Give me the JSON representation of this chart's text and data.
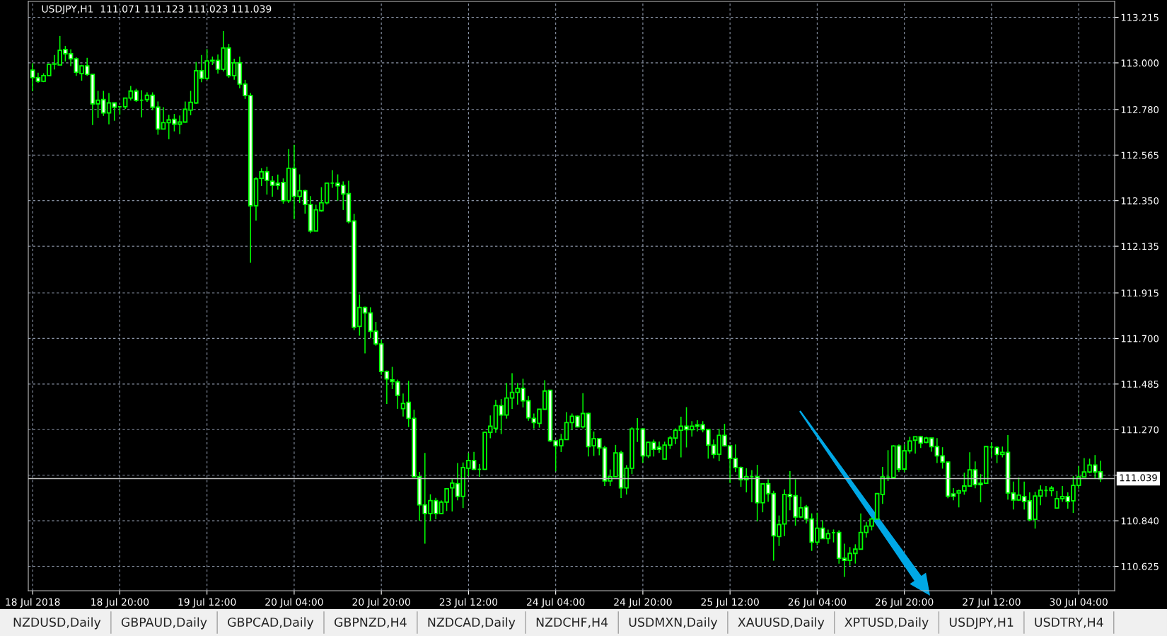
{
  "chart_data": {
    "type": "candlestick",
    "title": "USDJPY,H1  111.071 111.123 111.023 111.039",
    "color": "#00ff00",
    "categories": [
      "18 Jul 2018",
      null,
      null,
      null,
      null,
      null,
      null,
      null,
      null,
      null,
      null,
      null,
      null,
      null,
      null,
      null,
      "18 Jul 20:00",
      null,
      null,
      null,
      null,
      null,
      null,
      null,
      null,
      null,
      null,
      null,
      null,
      null,
      null,
      null,
      "19 Jul 12:00",
      null,
      null,
      null,
      null,
      null,
      null,
      null,
      null,
      null,
      null,
      null,
      null,
      null,
      null,
      null,
      "20 Jul 04:00",
      null,
      null,
      null,
      null,
      null,
      null,
      null,
      null,
      null,
      null,
      null,
      null,
      null,
      null,
      null,
      "20 Jul 20:00",
      null,
      null,
      null,
      null,
      null,
      null,
      null,
      null,
      null,
      null,
      null,
      null,
      null,
      null,
      null,
      "23 Jul 12:00",
      null,
      null,
      null,
      null,
      null,
      null,
      null,
      null,
      null,
      null,
      null,
      null,
      null,
      null,
      null,
      "24 Jul 04:00",
      null,
      null,
      null,
      null,
      null,
      null,
      null,
      null,
      null,
      null,
      null,
      null,
      null,
      null,
      null,
      "24 Jul 20:00",
      null,
      null,
      null,
      null,
      null,
      null,
      null,
      null,
      null,
      null,
      null,
      null,
      null,
      null,
      null,
      "25 Jul 12:00",
      null,
      null,
      null,
      null,
      null,
      null,
      null,
      null,
      null,
      null,
      null,
      null,
      null,
      null,
      null,
      "26 Jul 04:00",
      null,
      null,
      null,
      null,
      null,
      null,
      null,
      null,
      null,
      null,
      null,
      null,
      null,
      null,
      null,
      "26 Jul 20:00",
      null,
      null,
      null,
      null,
      null,
      null,
      null,
      null,
      null,
      null,
      null,
      null,
      null,
      null,
      null,
      "27 Jul 12:00",
      null,
      null,
      null,
      null,
      null,
      null,
      null,
      null,
      null,
      null,
      null,
      null,
      null,
      null,
      null,
      "30 Jul 04:00",
      null,
      null,
      null,
      null
    ],
    "ohlc": [
      [
        112.966,
        112.999,
        112.866,
        112.931
      ],
      [
        112.93,
        112.954,
        112.906,
        112.913
      ],
      [
        112.913,
        112.951,
        112.909,
        112.94
      ],
      [
        112.94,
        112.993,
        112.94,
        112.993
      ],
      [
        112.994,
        113.037,
        112.969,
        112.995
      ],
      [
        112.99,
        113.127,
        112.99,
        113.059
      ],
      [
        113.063,
        113.08,
        113.007,
        113.043
      ],
      [
        113.043,
        113.064,
        112.985,
        113.019
      ],
      [
        113.019,
        113.026,
        112.939,
        112.956
      ],
      [
        112.949,
        112.991,
        112.916,
        112.986
      ],
      [
        112.986,
        113.024,
        112.939,
        112.946
      ],
      [
        112.946,
        112.946,
        112.707,
        112.807
      ],
      [
        112.807,
        112.868,
        112.74,
        112.824
      ],
      [
        112.827,
        112.868,
        112.75,
        112.764
      ],
      [
        112.764,
        112.858,
        112.71,
        112.811
      ],
      [
        112.811,
        112.811,
        112.727,
        112.791
      ],
      [
        112.793,
        112.793,
        112.756,
        112.793
      ],
      [
        112.793,
        112.834,
        112.783,
        112.834
      ],
      [
        112.834,
        112.891,
        112.823,
        112.867
      ],
      [
        112.867,
        112.878,
        112.816,
        112.823
      ],
      [
        112.824,
        112.871,
        112.743,
        112.824
      ],
      [
        112.827,
        112.861,
        112.816,
        112.847
      ],
      [
        112.847,
        112.861,
        112.777,
        112.791
      ],
      [
        112.791,
        112.818,
        112.661,
        112.688
      ],
      [
        112.688,
        112.791,
        112.686,
        112.718
      ],
      [
        112.718,
        112.755,
        112.64,
        112.731
      ],
      [
        112.734,
        112.759,
        112.677,
        112.711
      ],
      [
        112.711,
        112.752,
        112.664,
        112.721
      ],
      [
        112.721,
        112.818,
        112.718,
        112.781
      ],
      [
        112.777,
        112.868,
        112.753,
        112.814
      ],
      [
        112.811,
        113.004,
        112.806,
        112.963
      ],
      [
        112.963,
        113.037,
        112.909,
        112.927
      ],
      [
        112.927,
        113.065,
        112.919,
        113.009
      ],
      [
        113.009,
        113.03,
        112.99,
        113.012
      ],
      [
        113.012,
        113.04,
        112.95,
        112.97
      ],
      [
        112.97,
        113.15,
        112.96,
        113.07
      ],
      [
        113.07,
        113.09,
        112.93,
        112.94
      ],
      [
        112.94,
        113.02,
        112.92,
        113.0
      ],
      [
        113.0,
        113.03,
        112.88,
        112.9
      ],
      [
        112.9,
        112.92,
        112.83,
        112.846
      ],
      [
        112.846,
        112.858,
        112.057,
        112.326
      ],
      [
        112.326,
        112.461,
        112.256,
        112.453
      ],
      [
        112.455,
        112.503,
        112.419,
        112.486
      ],
      [
        112.486,
        112.51,
        112.379,
        112.446
      ],
      [
        112.442,
        112.466,
        112.369,
        112.423
      ],
      [
        112.433,
        112.473,
        112.402,
        112.423
      ],
      [
        112.436,
        112.455,
        112.336,
        112.35
      ],
      [
        112.35,
        112.593,
        112.339,
        112.503
      ],
      [
        112.503,
        112.613,
        112.262,
        112.37
      ],
      [
        112.37,
        112.474,
        112.339,
        112.397
      ],
      [
        112.397,
        112.402,
        112.289,
        112.332
      ],
      [
        112.332,
        112.371,
        112.197,
        112.207
      ],
      [
        112.207,
        112.331,
        112.207,
        112.307
      ],
      [
        112.303,
        112.414,
        112.298,
        112.34
      ],
      [
        112.34,
        112.433,
        112.332,
        112.433
      ],
      [
        112.433,
        112.494,
        112.411,
        112.433
      ],
      [
        112.433,
        112.474,
        112.35,
        112.42
      ],
      [
        112.423,
        112.441,
        112.306,
        112.382
      ],
      [
        112.383,
        112.444,
        112.243,
        112.251
      ],
      [
        112.254,
        112.288,
        111.739,
        111.753
      ],
      [
        111.757,
        111.907,
        111.713,
        111.846
      ],
      [
        111.846,
        111.85,
        111.63,
        111.82
      ],
      [
        111.82,
        111.847,
        111.702,
        111.734
      ],
      [
        111.734,
        111.778,
        111.666,
        111.674
      ],
      [
        111.674,
        111.693,
        111.529,
        111.544
      ],
      [
        111.544,
        111.549,
        111.391,
        111.509
      ],
      [
        111.505,
        111.566,
        111.461,
        111.497
      ],
      [
        111.495,
        111.506,
        111.368,
        111.432
      ],
      [
        111.369,
        111.44,
        111.332,
        111.393
      ],
      [
        111.399,
        111.5,
        111.282,
        111.323
      ],
      [
        111.323,
        111.364,
        111.044,
        111.048
      ],
      [
        111.048,
        111.071,
        110.84,
        110.915
      ],
      [
        110.915,
        111.16,
        110.732,
        110.874
      ],
      [
        110.874,
        110.965,
        110.84,
        110.935
      ],
      [
        110.935,
        110.948,
        110.847,
        110.874
      ],
      [
        110.874,
        110.936,
        110.871,
        110.928
      ],
      [
        110.928,
        110.991,
        110.886,
        110.991
      ],
      [
        110.995,
        111.036,
        110.884,
        111.018
      ],
      [
        111.015,
        111.112,
        110.936,
        110.955
      ],
      [
        110.955,
        111.115,
        110.9,
        111.091
      ],
      [
        111.088,
        111.16,
        111.051,
        111.124
      ],
      [
        111.124,
        111.165,
        111.08,
        111.083
      ],
      [
        111.083,
        111.107,
        111.047,
        111.083
      ],
      [
        111.083,
        111.261,
        111.08,
        111.257
      ],
      [
        111.257,
        111.337,
        111.229,
        111.286
      ],
      [
        111.276,
        111.41,
        111.255,
        111.383
      ],
      [
        111.383,
        111.414,
        111.249,
        111.339
      ],
      [
        111.339,
        111.49,
        111.322,
        111.419
      ],
      [
        111.419,
        111.536,
        111.368,
        111.446
      ],
      [
        111.446,
        111.49,
        111.388,
        111.465
      ],
      [
        111.465,
        111.51,
        111.375,
        111.406
      ],
      [
        111.406,
        111.429,
        111.312,
        111.326
      ],
      [
        111.323,
        111.346,
        111.275,
        111.303
      ],
      [
        111.3,
        111.366,
        111.279,
        111.366
      ],
      [
        111.366,
        111.503,
        111.364,
        111.452
      ],
      [
        111.456,
        111.456,
        111.212,
        111.217
      ],
      [
        111.217,
        111.217,
        111.073,
        111.194
      ],
      [
        111.194,
        111.25,
        111.164,
        111.223
      ],
      [
        111.223,
        111.353,
        111.223,
        111.303
      ],
      [
        111.303,
        111.346,
        111.27,
        111.333
      ],
      [
        111.333,
        111.336,
        111.28,
        111.283
      ],
      [
        111.283,
        111.442,
        111.276,
        111.346
      ],
      [
        111.346,
        111.349,
        111.143,
        111.19
      ],
      [
        111.194,
        111.261,
        111.146,
        111.227
      ],
      [
        111.227,
        111.227,
        111.149,
        111.184
      ],
      [
        111.184,
        111.194,
        111.004,
        111.028
      ],
      [
        111.028,
        111.082,
        111.004,
        111.048
      ],
      [
        111.048,
        111.198,
        111.048,
        111.16
      ],
      [
        111.16,
        111.171,
        110.947,
        110.995
      ],
      [
        110.995,
        111.102,
        110.964,
        111.088
      ],
      [
        111.088,
        111.281,
        111.06,
        111.273
      ],
      [
        111.273,
        111.324,
        111.212,
        111.273
      ],
      [
        111.273,
        111.276,
        111.114,
        111.146
      ],
      [
        111.146,
        111.21,
        111.136,
        111.21
      ],
      [
        111.21,
        111.223,
        111.143,
        111.177
      ],
      [
        111.187,
        111.213,
        111.16,
        111.177
      ],
      [
        111.131,
        111.213,
        111.131,
        111.197
      ],
      [
        111.197,
        111.24,
        111.179,
        111.23
      ],
      [
        111.23,
        111.276,
        111.202,
        111.267
      ],
      [
        111.267,
        111.331,
        111.139,
        111.286
      ],
      [
        111.286,
        111.376,
        111.186,
        111.27
      ],
      [
        111.27,
        111.31,
        111.237,
        111.286
      ],
      [
        111.293,
        111.314,
        111.262,
        111.286
      ],
      [
        111.293,
        111.31,
        111.257,
        111.27
      ],
      [
        111.27,
        111.273,
        111.133,
        111.197
      ],
      [
        111.197,
        111.223,
        111.134,
        111.154
      ],
      [
        111.154,
        111.273,
        111.121,
        111.243
      ],
      [
        111.243,
        111.297,
        111.19,
        111.194
      ],
      [
        111.194,
        111.194,
        111.018,
        111.134
      ],
      [
        111.134,
        111.2,
        111.07,
        111.091
      ],
      [
        111.091,
        111.096,
        111.0,
        111.034
      ],
      [
        111.034,
        111.088,
        110.974,
        111.048
      ],
      [
        111.048,
        111.079,
        110.927,
        111.048
      ],
      [
        111.048,
        111.104,
        110.837,
        110.925
      ],
      [
        110.925,
        111.014,
        110.88,
        111.014
      ],
      [
        111.014,
        111.036,
        110.93,
        110.968
      ],
      [
        110.968,
        110.981,
        110.652,
        110.769
      ],
      [
        110.766,
        110.865,
        110.721,
        110.822
      ],
      [
        110.825,
        110.988,
        110.768,
        110.964
      ],
      [
        110.964,
        111.074,
        110.89,
        110.954
      ],
      [
        110.958,
        111.036,
        110.817,
        110.858
      ],
      [
        110.858,
        110.954,
        110.852,
        110.901
      ],
      [
        110.905,
        110.915,
        110.828,
        110.848
      ],
      [
        110.848,
        110.875,
        110.698,
        110.739
      ],
      [
        110.739,
        110.878,
        110.725,
        110.805
      ],
      [
        110.805,
        110.842,
        110.756,
        110.756
      ],
      [
        110.756,
        110.799,
        110.731,
        110.779
      ],
      [
        110.784,
        110.799,
        110.738,
        110.784
      ],
      [
        110.785,
        110.795,
        110.638,
        110.663
      ],
      [
        110.663,
        110.732,
        110.575,
        110.653
      ],
      [
        110.653,
        110.716,
        110.628,
        110.686
      ],
      [
        110.686,
        110.729,
        110.638,
        110.706
      ],
      [
        110.706,
        110.875,
        110.706,
        110.785
      ],
      [
        110.785,
        110.835,
        110.761,
        110.815
      ],
      [
        110.815,
        110.855,
        110.795,
        110.848
      ],
      [
        110.848,
        110.968,
        110.848,
        110.968
      ],
      [
        110.964,
        111.094,
        110.92,
        111.047
      ],
      [
        111.046,
        111.173,
        111.027,
        111.046
      ],
      [
        111.044,
        111.196,
        111.041,
        111.193
      ],
      [
        111.193,
        111.2,
        111.07,
        111.084
      ],
      [
        111.084,
        111.2,
        111.07,
        111.17
      ],
      [
        111.17,
        111.236,
        111.157,
        111.216
      ],
      [
        111.22,
        111.236,
        111.157,
        111.236
      ],
      [
        111.236,
        111.241,
        111.183,
        111.206
      ],
      [
        111.21,
        111.236,
        111.206,
        111.23
      ],
      [
        111.23,
        111.23,
        111.166,
        111.19
      ],
      [
        111.19,
        111.23,
        111.112,
        111.146
      ],
      [
        111.146,
        111.187,
        111.086,
        111.117
      ],
      [
        111.117,
        111.117,
        110.946,
        110.956
      ],
      [
        110.967,
        110.994,
        110.936,
        110.956
      ],
      [
        110.971,
        110.987,
        110.903,
        110.981
      ],
      [
        110.981,
        111.067,
        110.963,
        111.004
      ],
      [
        111.004,
        111.163,
        111.004,
        111.08
      ],
      [
        111.08,
        111.12,
        110.993,
        111.01
      ],
      [
        111.017,
        111.06,
        110.927,
        111.01
      ],
      [
        111.017,
        111.19,
        111.017,
        111.19
      ],
      [
        111.188,
        111.209,
        111.142,
        111.188
      ],
      [
        111.186,
        111.19,
        111.112,
        111.153
      ],
      [
        111.153,
        111.19,
        111.139,
        111.163
      ],
      [
        111.163,
        111.244,
        110.94,
        110.971
      ],
      [
        110.971,
        111.025,
        110.893,
        110.938
      ],
      [
        110.938,
        111.044,
        110.933,
        110.961
      ],
      [
        110.954,
        111.025,
        110.893,
        110.931
      ],
      [
        110.934,
        110.974,
        110.838,
        110.845
      ],
      [
        110.847,
        110.977,
        110.803,
        110.957
      ],
      [
        110.957,
        111.007,
        110.913,
        110.984
      ],
      [
        110.983,
        111.004,
        110.953,
        110.983
      ],
      [
        110.983,
        111.004,
        110.956,
        110.994
      ],
      [
        110.9,
        110.981,
        110.9,
        110.944
      ],
      [
        110.944,
        111.004,
        110.93,
        110.954
      ],
      [
        110.954,
        110.974,
        110.897,
        110.931
      ],
      [
        110.934,
        111.05,
        110.877,
        111.007
      ],
      [
        111.007,
        111.097,
        110.991,
        111.047
      ],
      [
        111.047,
        111.136,
        111.044,
        111.07
      ],
      [
        111.07,
        111.133,
        111.064,
        111.103
      ],
      [
        111.103,
        111.15,
        111.037,
        111.07
      ],
      [
        111.071,
        111.123,
        111.023,
        111.039
      ]
    ],
    "ylim": [
      110.51,
      113.29
    ],
    "yticks": [
      {
        "value": 110.625,
        "label": "110.625"
      },
      {
        "value": 110.84,
        "label": "110.840"
      },
      {
        "value": 111.055,
        "label": null
      },
      {
        "value": 111.27,
        "label": "111.270"
      },
      {
        "value": 111.485,
        "label": "111.485"
      },
      {
        "value": 111.7,
        "label": "111.700"
      },
      {
        "value": 111.915,
        "label": "111.915"
      },
      {
        "value": 112.135,
        "label": "112.135"
      },
      {
        "value": 112.35,
        "label": "112.350"
      },
      {
        "value": 112.565,
        "label": "112.565"
      },
      {
        "value": 112.78,
        "label": "112.780"
      },
      {
        "value": 113.0,
        "label": "113.000"
      },
      {
        "value": 113.215,
        "label": "113.215"
      }
    ],
    "ref_lines": [
      {
        "axis": "y",
        "value": 111.039,
        "label": "111.039",
        "color": "#c0c0c0"
      }
    ],
    "grid": true,
    "legend": false,
    "annotations": [
      "NZDUSD,Daily",
      "GBPAUD,Daily",
      "GBPCAD,Daily",
      "GBPNZD,H4",
      "NZDCAD,Daily",
      "NZDCHF,H4",
      "USDMXN,Daily",
      "XAUUSD,Daily",
      "XPTUSD,Daily",
      "USDJPY,H1",
      "USDTRY,H4"
    ]
  }
}
